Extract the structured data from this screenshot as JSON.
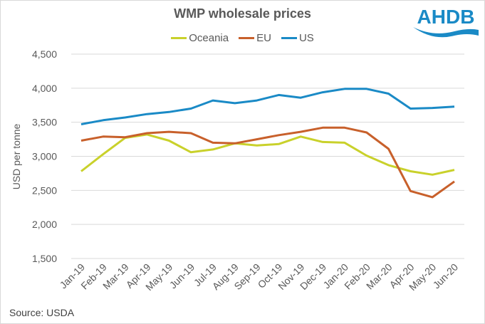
{
  "logo": {
    "text": "AHDB",
    "color": "#1a8ac6"
  },
  "source": "Source: USDA",
  "chart_data": {
    "type": "line",
    "title": "WMP wholesale prices",
    "xlabel": "",
    "ylabel": "USD per tonne",
    "ylim": [
      1500,
      4500
    ],
    "yticks": [
      1500,
      2000,
      2500,
      3000,
      3500,
      4000,
      4500
    ],
    "ytick_labels": [
      "1,500",
      "2,000",
      "2,500",
      "3,000",
      "3,500",
      "4,000",
      "4,500"
    ],
    "grid": true,
    "legend_position": "top",
    "categories": [
      "Jan-19",
      "Feb-19",
      "Mar-19",
      "Apr-19",
      "May-19",
      "Jun-19",
      "Jul-19",
      "Aug-19",
      "Sep-19",
      "Oct-19",
      "Nov-19",
      "Dec-19",
      "Jan-20",
      "Feb-20",
      "Mar-20",
      "Apr-20",
      "May-20",
      "Jun-20"
    ],
    "series": [
      {
        "name": "Oceania",
        "color": "#c9d12b",
        "values": [
          2780,
          3030,
          3270,
          3320,
          3230,
          3060,
          3100,
          3190,
          3160,
          3180,
          3290,
          3210,
          3200,
          3010,
          2870,
          2780,
          2730,
          2800
        ]
      },
      {
        "name": "EU",
        "color": "#c8602b",
        "values": [
          3230,
          3290,
          3280,
          3340,
          3360,
          3340,
          3200,
          3190,
          3250,
          3310,
          3360,
          3420,
          3420,
          3350,
          3110,
          2490,
          2400,
          2630
        ]
      },
      {
        "name": "US",
        "color": "#1a8ac6",
        "values": [
          3470,
          3530,
          3570,
          3620,
          3650,
          3700,
          3820,
          3780,
          3820,
          3900,
          3860,
          3940,
          3990,
          3990,
          3920,
          3700,
          3710,
          3730
        ]
      }
    ]
  }
}
